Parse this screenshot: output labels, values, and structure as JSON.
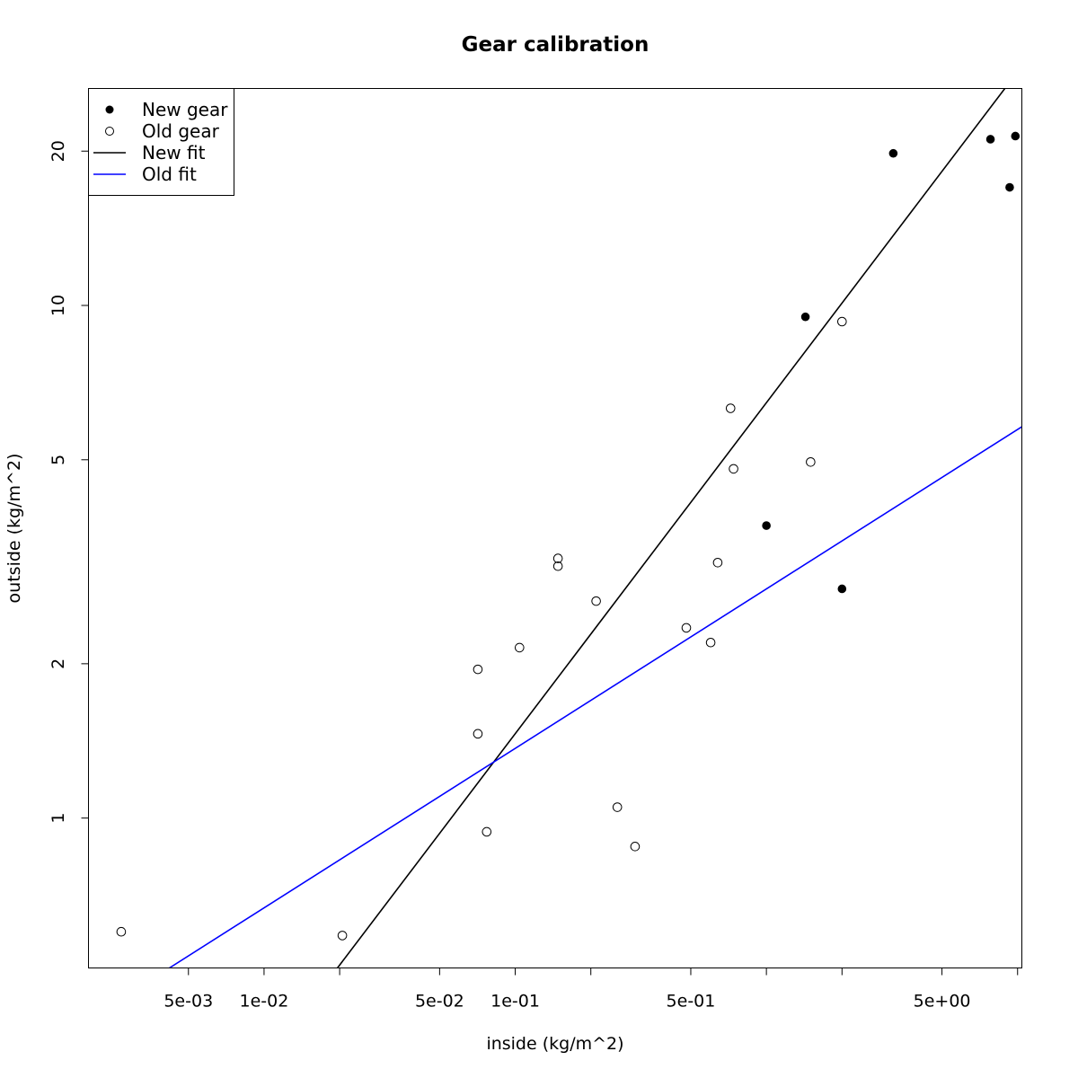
{
  "chart_data": {
    "type": "scatter",
    "title": "Gear calibration",
    "xlabel": "inside (kg/m^2)",
    "ylabel": "outside (kg/m^2)",
    "log_x": true,
    "log_y": true,
    "xlim": [
      0.002,
      10.4
    ],
    "ylim": [
      0.51,
      26.5
    ],
    "x_ticks": [
      {
        "value": 0.005,
        "label": "5e-03"
      },
      {
        "value": 0.01,
        "label": "1e-02"
      },
      {
        "value": 0.02,
        "label": ""
      },
      {
        "value": 0.05,
        "label": "5e-02"
      },
      {
        "value": 0.1,
        "label": "1e-01"
      },
      {
        "value": 0.2,
        "label": ""
      },
      {
        "value": 0.5,
        "label": "5e-01"
      },
      {
        "value": 1,
        "label": ""
      },
      {
        "value": 2,
        "label": ""
      },
      {
        "value": 5,
        "label": "5e+00"
      },
      {
        "value": 10,
        "label": ""
      }
    ],
    "y_ticks": [
      {
        "value": 1,
        "label": "1"
      },
      {
        "value": 2,
        "label": "2"
      },
      {
        "value": 5,
        "label": "5"
      },
      {
        "value": 10,
        "label": "10"
      },
      {
        "value": 20,
        "label": "20"
      }
    ],
    "grid": false,
    "legend_position": "top-left",
    "series": [
      {
        "name": "New gear",
        "kind": "points",
        "marker": "filled-circle",
        "color": "#000000",
        "points": [
          {
            "x": 1.0,
            "y": 3.72
          },
          {
            "x": 1.43,
            "y": 9.5
          },
          {
            "x": 2.0,
            "y": 2.8
          },
          {
            "x": 3.2,
            "y": 19.8
          },
          {
            "x": 7.8,
            "y": 21.1
          },
          {
            "x": 9.3,
            "y": 17.0
          },
          {
            "x": 9.8,
            "y": 21.4
          }
        ]
      },
      {
        "name": "Old gear",
        "kind": "points",
        "marker": "open-circle",
        "color": "#000000",
        "points": [
          {
            "x": 0.0027,
            "y": 0.6
          },
          {
            "x": 0.0205,
            "y": 0.59
          },
          {
            "x": 0.071,
            "y": 1.95
          },
          {
            "x": 0.071,
            "y": 1.46
          },
          {
            "x": 0.077,
            "y": 0.94
          },
          {
            "x": 0.104,
            "y": 2.15
          },
          {
            "x": 0.148,
            "y": 3.21
          },
          {
            "x": 0.148,
            "y": 3.1
          },
          {
            "x": 0.21,
            "y": 2.65
          },
          {
            "x": 0.255,
            "y": 1.05
          },
          {
            "x": 0.3,
            "y": 0.88
          },
          {
            "x": 0.48,
            "y": 2.35
          },
          {
            "x": 0.6,
            "y": 2.2
          },
          {
            "x": 0.64,
            "y": 3.15
          },
          {
            "x": 0.72,
            "y": 6.3
          },
          {
            "x": 0.74,
            "y": 4.8
          },
          {
            "x": 1.5,
            "y": 4.95
          },
          {
            "x": 2.0,
            "y": 9.3
          }
        ]
      },
      {
        "name": "New fit",
        "kind": "line",
        "color": "#000000",
        "points": [
          {
            "x": 0.0196,
            "y": 0.51
          },
          {
            "x": 8.9,
            "y": 26.5
          }
        ]
      },
      {
        "name": "Old fit",
        "kind": "line",
        "color": "#0000ff",
        "points": [
          {
            "x": 0.0042,
            "y": 0.51
          },
          {
            "x": 10.4,
            "y": 5.8
          }
        ]
      }
    ]
  }
}
